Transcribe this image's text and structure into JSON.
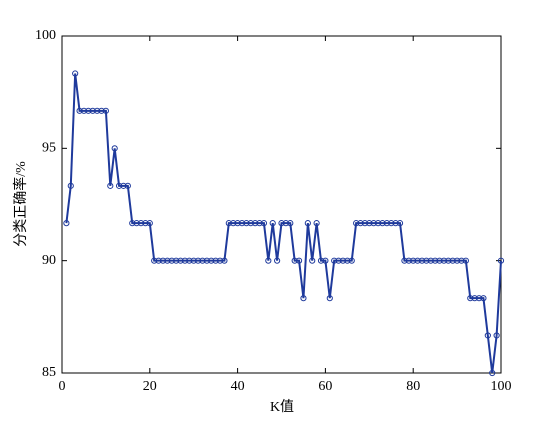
{
  "chart_data": {
    "type": "line",
    "xlabel": "K值",
    "ylabel": "分类正确率/%",
    "x": [
      1,
      2,
      3,
      4,
      5,
      6,
      7,
      8,
      9,
      10,
      11,
      12,
      13,
      14,
      15,
      16,
      17,
      18,
      19,
      20,
      21,
      22,
      23,
      24,
      25,
      26,
      27,
      28,
      29,
      30,
      31,
      32,
      33,
      34,
      35,
      36,
      37,
      38,
      39,
      40,
      41,
      42,
      43,
      44,
      45,
      46,
      47,
      48,
      49,
      50,
      51,
      52,
      53,
      54,
      55,
      56,
      57,
      58,
      59,
      60,
      61,
      62,
      63,
      64,
      65,
      66,
      67,
      68,
      69,
      70,
      71,
      72,
      73,
      74,
      75,
      76,
      77,
      78,
      79,
      80,
      81,
      82,
      83,
      84,
      85,
      86,
      87,
      88,
      89,
      90,
      91,
      92,
      93,
      94,
      95,
      96,
      97,
      98,
      99,
      100
    ],
    "series": [
      {
        "color": "#1f3a9c",
        "values": [
          91.67,
          93.33,
          98.33,
          96.67,
          96.67,
          96.67,
          96.67,
          96.67,
          96.67,
          96.67,
          93.33,
          95,
          93.33,
          93.33,
          93.33,
          91.67,
          91.67,
          91.67,
          91.67,
          91.67,
          90,
          90,
          90,
          90,
          90,
          90,
          90,
          90,
          90,
          90,
          90,
          90,
          90,
          90,
          90,
          90,
          90,
          91.67,
          91.67,
          91.67,
          91.67,
          91.67,
          91.67,
          91.67,
          91.67,
          91.67,
          90,
          91.67,
          90,
          91.67,
          91.67,
          91.67,
          90,
          90,
          88.33,
          91.67,
          90,
          91.67,
          90,
          90,
          88.33,
          90,
          90,
          90,
          90,
          90,
          91.67,
          91.67,
          91.67,
          91.67,
          91.67,
          91.67,
          91.67,
          91.67,
          91.67,
          91.67,
          91.67,
          90,
          90,
          90,
          90,
          90,
          90,
          90,
          90,
          90,
          90,
          90,
          90,
          90,
          90,
          90,
          88.33,
          88.33,
          88.33,
          88.33,
          86.67,
          85,
          86.67,
          90
        ]
      }
    ],
    "xlim": [
      0,
      100
    ],
    "xticks": [
      0,
      20,
      40,
      60,
      80,
      100
    ],
    "ylim": [
      85,
      100
    ],
    "yticks": [
      85,
      90,
      95,
      100
    ],
    "grid": false
  }
}
